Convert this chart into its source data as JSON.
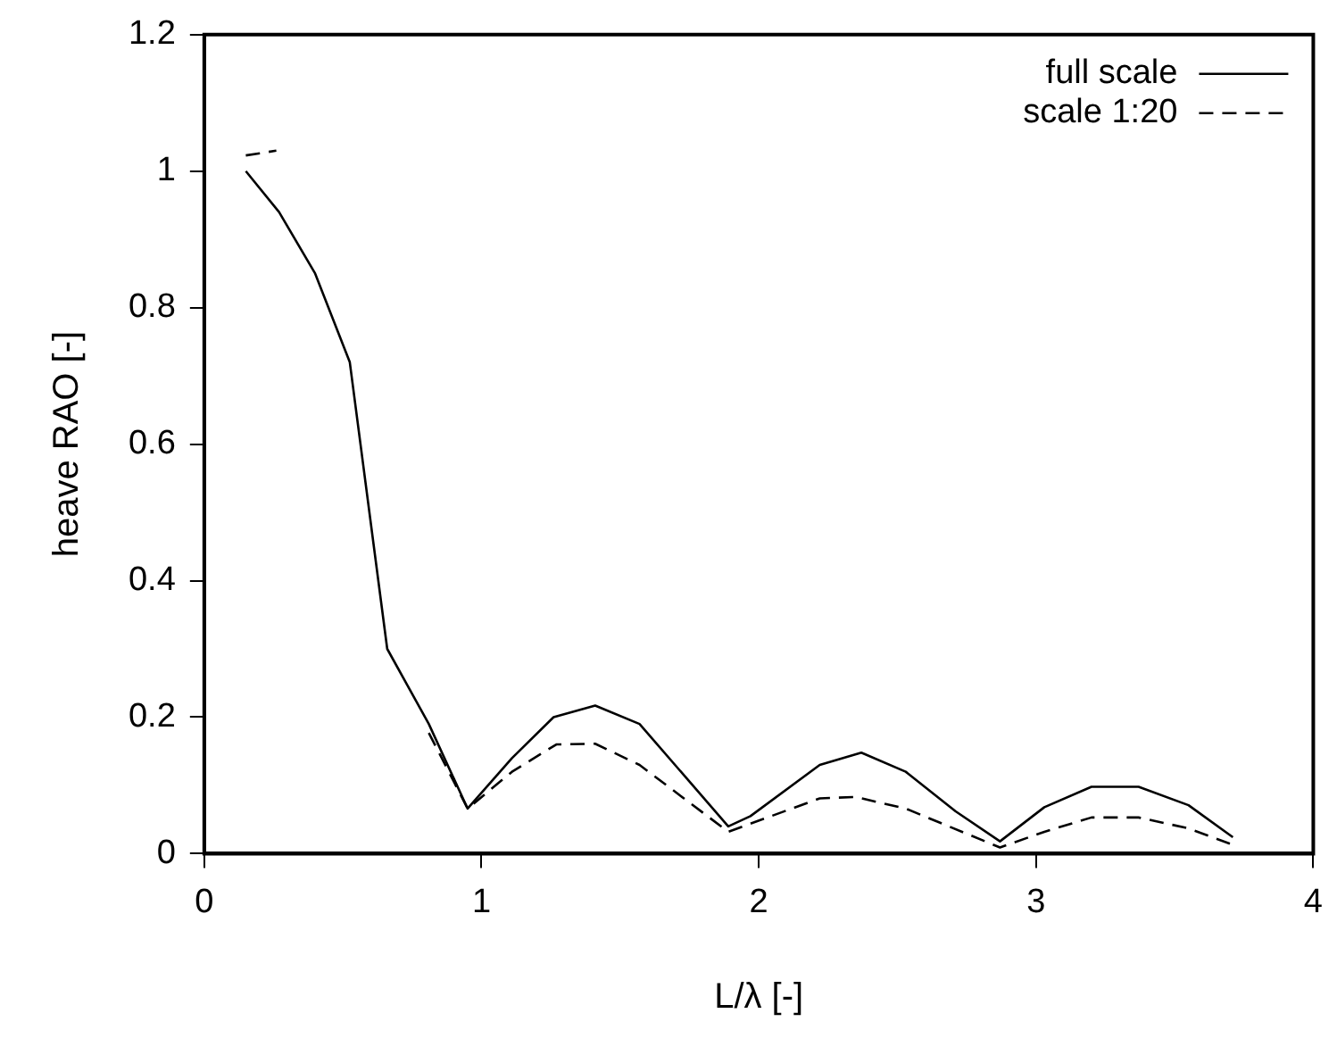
{
  "chart_data": {
    "type": "line",
    "xlabel": "L/λ [-]",
    "ylabel": "heave RAO [-]",
    "xlim": [
      0,
      4
    ],
    "xticks": [
      0,
      1,
      2,
      3,
      4
    ],
    "ylim": [
      0,
      1.2
    ],
    "yticks": [
      0,
      0.2,
      0.4,
      0.6,
      0.8,
      1,
      1.2
    ],
    "grid": false,
    "legend": "top right",
    "marker": "none",
    "series": [
      {
        "name": "full scale",
        "color": "#000000",
        "line_style": "solid",
        "x": [
          0.15,
          0.27,
          0.4,
          0.525,
          0.66,
          0.81,
          0.95,
          1.11,
          1.26,
          1.41,
          1.57,
          1.89,
          1.97,
          2.22,
          2.37,
          2.53,
          2.71,
          2.87,
          3.03,
          3.2,
          3.37,
          3.55,
          3.71
        ],
        "values": [
          1.0,
          0.94,
          0.85,
          0.72,
          0.3,
          0.19,
          0.066,
          0.14,
          0.2,
          0.217,
          0.19,
          0.04,
          0.055,
          0.13,
          0.148,
          0.12,
          0.062,
          0.018,
          0.068,
          0.098,
          0.098,
          0.071,
          0.024
        ]
      },
      {
        "name": "scale 1:20",
        "color": "#000000",
        "line_style": "dashed",
        "x": [
          0.15,
          0.26,
          0.5,
          0.81,
          0.95,
          1.11,
          1.27,
          1.41,
          1.57,
          1.89,
          2.22,
          2.35,
          2.53,
          2.87,
          3.03,
          3.2,
          3.37,
          3.55,
          3.71
        ],
        "values": [
          1.023,
          1.03,
          null,
          0.177,
          0.066,
          0.12,
          0.16,
          0.161,
          0.13,
          0.032,
          0.081,
          0.083,
          0.066,
          0.009,
          0.032,
          0.053,
          0.053,
          0.037,
          0.013
        ]
      }
    ]
  }
}
